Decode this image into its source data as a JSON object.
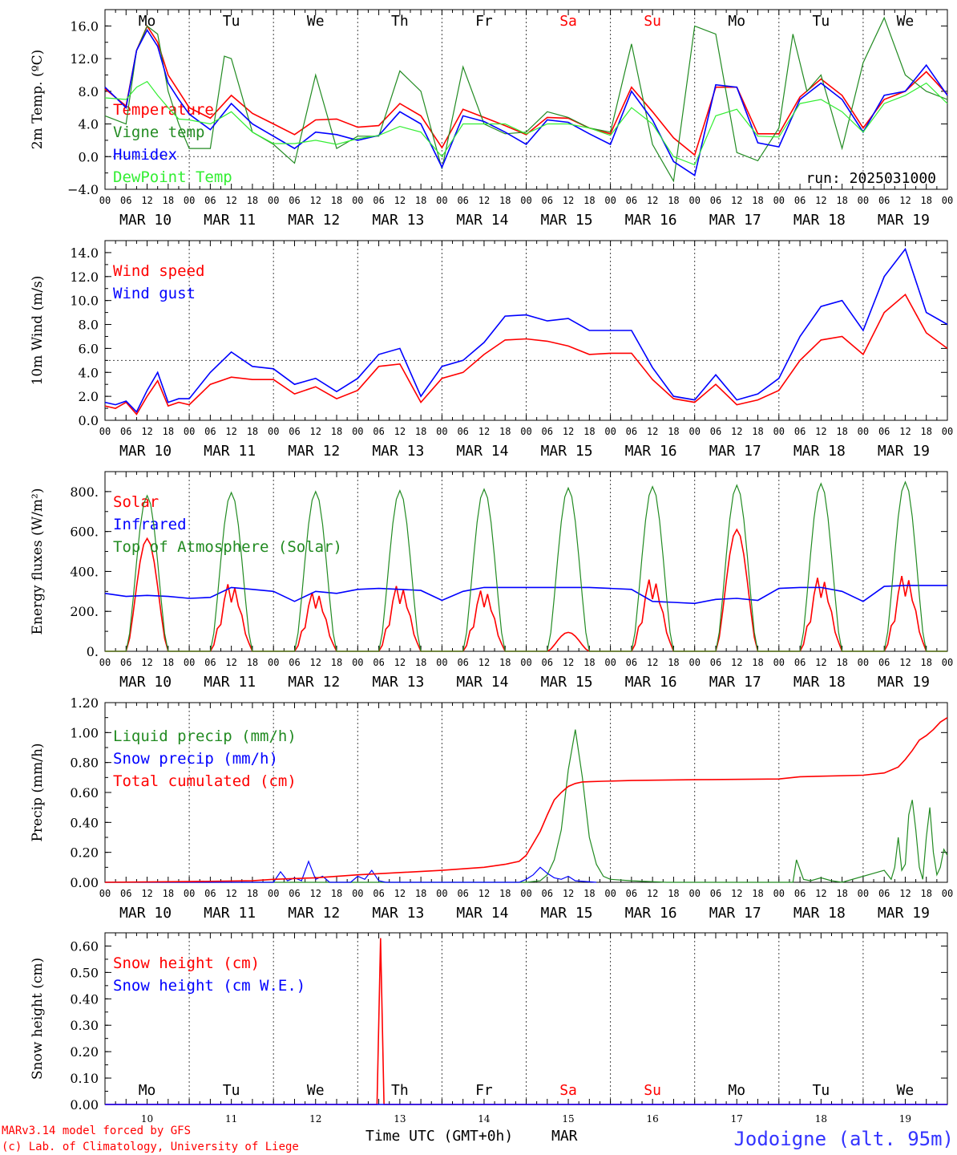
{
  "colors": {
    "red": "#ff0000",
    "blue": "#0000ff",
    "green": "#228b22",
    "lightgreen": "#33ee33",
    "gridgray": "#555555",
    "footer_blue": "#3333ff"
  },
  "day_names": [
    "Mo",
    "Tu",
    "We",
    "Th",
    "Fr",
    "Sa",
    "Su",
    "Mo",
    "Tu",
    "We"
  ],
  "weekend_day_indices": [
    5,
    6
  ],
  "day_dates": [
    "MAR 10",
    "MAR 11",
    "MAR 12",
    "MAR 13",
    "MAR 14",
    "MAR 15",
    "MAR 16",
    "MAR 17",
    "MAR 18",
    "MAR 19"
  ],
  "hour_ticks": [
    "00",
    "06",
    "12",
    "18"
  ],
  "day_numbers": [
    "10",
    "11",
    "12",
    "13",
    "14",
    "15",
    "16",
    "17",
    "18",
    "19"
  ],
  "footer": {
    "model": "MARv3.14 model forced by GFS",
    "copyright": "(c) Lab. of Climatology, University of Liege",
    "xlabel": "Time UTC (GMT+0h)",
    "month": "MAR",
    "station": "Jodoigne (alt. 95m)"
  },
  "chart_data": [
    {
      "type": "line",
      "ylabel": "2m Temp. (ºC)",
      "ylim": [
        -4,
        18
      ],
      "yticks": [
        "−4.0",
        "0.0",
        "4.0",
        "8.0",
        "12.0",
        "16.0"
      ],
      "yticks_values": [
        -4,
        0,
        4,
        8,
        12,
        16
      ],
      "reference_line": 0,
      "annotation": "run: 2025031000",
      "x_unit": "hours since MAR 10 00 UTC",
      "series": [
        {
          "name": "Temperature",
          "color": "red",
          "x": [
            0,
            6,
            9,
            12,
            15,
            18,
            21,
            24,
            30,
            36,
            42,
            48,
            54,
            60,
            66,
            72,
            78,
            84,
            90,
            96,
            102,
            108,
            114,
            120,
            126,
            132,
            138,
            144,
            150,
            156,
            162,
            168,
            174,
            180,
            186,
            192,
            198,
            204,
            210,
            216,
            222,
            228,
            234,
            240
          ],
          "y": [
            8.3,
            6.2,
            13,
            16,
            14,
            10,
            8,
            6,
            4.7,
            7.5,
            5.3,
            4,
            2.7,
            4.5,
            4.6,
            3.6,
            3.8,
            6.5,
            5,
            1.1,
            5.8,
            4.8,
            3.8,
            2.7,
            4.8,
            4.7,
            3.5,
            2.8,
            8.5,
            5.5,
            2.3,
            0.2,
            8.5,
            8.5,
            2.8,
            2.8,
            7.3,
            9.5,
            7.5,
            3.5,
            7,
            8,
            10.4,
            7.6
          ]
        },
        {
          "name": "Vigne temp",
          "color": "green",
          "x": [
            0,
            6,
            9,
            12,
            15,
            18,
            21,
            24,
            30,
            34,
            36,
            42,
            48,
            54,
            60,
            66,
            72,
            78,
            84,
            90,
            96,
            102,
            108,
            114,
            120,
            126,
            132,
            138,
            144,
            150,
            156,
            162,
            168,
            174,
            180,
            186,
            192,
            196,
            200,
            204,
            210,
            216,
            222,
            228,
            234,
            240
          ],
          "y": [
            5,
            4,
            13,
            16,
            15,
            8,
            4,
            1,
            1,
            12.3,
            12,
            3,
            1.5,
            -0.8,
            10,
            1,
            2.5,
            2.5,
            10.5,
            8,
            -1.5,
            11,
            4,
            2.8,
            3,
            5.5,
            4.8,
            3.5,
            3,
            13.8,
            1.5,
            -3,
            16,
            15,
            0.5,
            -0.5,
            3.5,
            15,
            8,
            10,
            1,
            11.5,
            17,
            10,
            8,
            7
          ]
        },
        {
          "name": "Humidex",
          "color": "blue",
          "x": [
            0,
            6,
            9,
            12,
            15,
            18,
            21,
            24,
            30,
            36,
            42,
            48,
            54,
            60,
            66,
            72,
            78,
            84,
            90,
            96,
            102,
            108,
            114,
            120,
            126,
            132,
            138,
            144,
            150,
            156,
            162,
            168,
            174,
            180,
            186,
            192,
            198,
            204,
            210,
            216,
            222,
            228,
            234,
            240
          ],
          "y": [
            8.5,
            6,
            13,
            15.5,
            13.5,
            9,
            7,
            5.2,
            3.3,
            6.5,
            4,
            2.5,
            1,
            3,
            2.7,
            2,
            2.6,
            5.5,
            4,
            -1.3,
            5,
            4.3,
            3,
            1.5,
            4.5,
            4.2,
            2.8,
            1.5,
            8,
            4.5,
            -0.6,
            -2.3,
            8.8,
            8.5,
            1.7,
            1.2,
            7,
            9,
            7,
            3,
            7.5,
            8,
            11.2,
            7.5
          ]
        },
        {
          "name": "DewPoint Temp",
          "color": "lightgreen",
          "x": [
            0,
            6,
            9,
            12,
            15,
            18,
            21,
            24,
            30,
            36,
            42,
            48,
            54,
            60,
            66,
            72,
            78,
            84,
            90,
            96,
            102,
            108,
            114,
            120,
            126,
            132,
            138,
            144,
            150,
            156,
            162,
            168,
            174,
            180,
            186,
            192,
            198,
            204,
            210,
            216,
            222,
            228,
            234,
            240
          ],
          "y": [
            7.2,
            7,
            8.5,
            9.2,
            7.5,
            6,
            4.6,
            4.5,
            4,
            5.5,
            3,
            1.6,
            1.6,
            2,
            1.5,
            2.2,
            2.6,
            3.7,
            3,
            0,
            4,
            4,
            4,
            2.8,
            4,
            4,
            3.5,
            2.6,
            6,
            4,
            0,
            -1,
            5,
            5.8,
            2.5,
            2.4,
            6.5,
            7,
            5.5,
            3,
            6.5,
            7.5,
            9,
            6.5
          ]
        }
      ]
    },
    {
      "type": "line",
      "ylabel": "10m Wind (m/s)",
      "ylim": [
        0,
        15
      ],
      "yticks": [
        "0.0",
        "2.0",
        "4.0",
        "6.0",
        "8.0",
        "10.0",
        "12.0",
        "14.0"
      ],
      "yticks_values": [
        0,
        2,
        4,
        6,
        8,
        10,
        12,
        14
      ],
      "reference_line": 5,
      "series": [
        {
          "name": "Wind speed",
          "color": "red",
          "x": [
            0,
            3,
            6,
            9,
            12,
            15,
            18,
            21,
            24,
            30,
            36,
            42,
            48,
            54,
            60,
            66,
            72,
            78,
            84,
            90,
            96,
            102,
            108,
            114,
            120,
            126,
            132,
            138,
            144,
            150,
            156,
            162,
            168,
            174,
            180,
            186,
            192,
            198,
            204,
            210,
            216,
            222,
            228,
            234,
            240
          ],
          "y": [
            1.2,
            1,
            1.5,
            0.5,
            2,
            3.3,
            1.2,
            1.5,
            1.3,
            3,
            3.6,
            3.4,
            3.4,
            2.2,
            2.8,
            1.8,
            2.5,
            4.5,
            4.7,
            1.5,
            3.5,
            4,
            5.5,
            6.7,
            6.8,
            6.6,
            6.2,
            5.5,
            5.6,
            5.6,
            3.4,
            1.8,
            1.5,
            3,
            1.3,
            1.7,
            2.5,
            5,
            6.7,
            7,
            5.5,
            9,
            10.5,
            7.3,
            6
          ]
        },
        {
          "name": "Wind gust",
          "color": "blue",
          "x": [
            0,
            3,
            6,
            9,
            12,
            15,
            18,
            21,
            24,
            30,
            36,
            42,
            48,
            54,
            60,
            66,
            72,
            78,
            84,
            90,
            96,
            102,
            108,
            114,
            120,
            126,
            132,
            138,
            144,
            150,
            156,
            162,
            168,
            174,
            180,
            186,
            192,
            198,
            204,
            210,
            216,
            222,
            228,
            234,
            240
          ],
          "y": [
            1.5,
            1.3,
            1.6,
            0.7,
            2.5,
            4,
            1.5,
            1.8,
            1.8,
            4,
            5.7,
            4.5,
            4.3,
            3,
            3.5,
            2.4,
            3.5,
            5.5,
            6,
            2,
            4.5,
            5,
            6.5,
            8.7,
            8.8,
            8.3,
            8.5,
            7.5,
            7.5,
            7.5,
            4.4,
            2,
            1.7,
            3.8,
            1.7,
            2.2,
            3.5,
            7,
            9.5,
            10,
            7.5,
            12,
            14.3,
            9,
            8
          ]
        }
      ]
    },
    {
      "type": "line",
      "ylabel": "Energy fluxes (W/m²)",
      "ylim": [
        0,
        900
      ],
      "yticks": [
        "0.",
        "200.",
        "400.",
        "600.",
        "800."
      ],
      "yticks_values": [
        0,
        200,
        400,
        600,
        800
      ],
      "series": [
        {
          "name": "Solar",
          "color": "red",
          "peaks": [
            565,
            365,
            320,
            355,
            330,
            95,
            390,
            610,
            400,
            410
          ]
        },
        {
          "name": "Infrared",
          "color": "blue",
          "x": [
            0,
            6,
            12,
            18,
            24,
            30,
            36,
            42,
            48,
            54,
            60,
            66,
            72,
            78,
            84,
            90,
            96,
            102,
            108,
            114,
            120,
            126,
            132,
            138,
            144,
            150,
            156,
            162,
            168,
            174,
            180,
            186,
            192,
            198,
            204,
            210,
            216,
            222,
            228,
            234,
            240
          ],
          "y": [
            290,
            275,
            280,
            275,
            265,
            270,
            320,
            310,
            300,
            250,
            300,
            290,
            310,
            315,
            310,
            305,
            255,
            300,
            320,
            320,
            320,
            320,
            320,
            320,
            315,
            310,
            250,
            245,
            240,
            260,
            265,
            255,
            315,
            320,
            320,
            300,
            250,
            325,
            330,
            330,
            330
          ]
        },
        {
          "name": "Top of Atmosphere (Solar)",
          "color": "green",
          "peaks": [
            780,
            795,
            800,
            805,
            812,
            818,
            825,
            832,
            840,
            848
          ]
        }
      ]
    },
    {
      "type": "line",
      "ylabel": "Precip (mm/h)",
      "ylim": [
        0,
        1.2
      ],
      "yticks": [
        "0.00",
        "0.20",
        "0.40",
        "0.60",
        "0.80",
        "1.00",
        "1.20"
      ],
      "yticks_values": [
        0,
        0.2,
        0.4,
        0.6,
        0.8,
        1.0,
        1.2
      ],
      "series": [
        {
          "name": "Liquid precip (mm/h)",
          "color": "green",
          "x": [
            0,
            48,
            120,
            124,
            126,
            128,
            130,
            132,
            134,
            136,
            138,
            140,
            142,
            144,
            150,
            160,
            196,
            197,
            199,
            201,
            204,
            207,
            210,
            222,
            224,
            225,
            226,
            227,
            228,
            229,
            230,
            231,
            232,
            233,
            234,
            235,
            236,
            237,
            238,
            239,
            240
          ],
          "y": [
            0,
            0,
            0,
            0.01,
            0.05,
            0.15,
            0.35,
            0.75,
            1.02,
            0.7,
            0.3,
            0.12,
            0.04,
            0.02,
            0.01,
            0,
            0,
            0.15,
            0.02,
            0.01,
            0.03,
            0.01,
            0,
            0.08,
            0.02,
            0.1,
            0.3,
            0.08,
            0.12,
            0.45,
            0.55,
            0.35,
            0.1,
            0.02,
            0.3,
            0.5,
            0.2,
            0.05,
            0.1,
            0.22,
            0.18
          ]
        },
        {
          "name": "Snow precip (mm/h)",
          "color": "blue",
          "x": [
            0,
            48,
            50,
            52,
            54,
            56,
            58,
            60,
            62,
            64,
            70,
            72,
            74,
            76,
            78,
            80,
            118,
            120,
            122,
            124,
            126,
            128,
            130,
            132,
            134,
            140
          ],
          "y": [
            0,
            0,
            0.07,
            0.01,
            0.03,
            0.01,
            0.14,
            0.02,
            0.04,
            0,
            0,
            0.04,
            0.02,
            0.08,
            0.01,
            0,
            0,
            0.02,
            0.05,
            0.1,
            0.06,
            0.03,
            0.02,
            0.04,
            0.01,
            0
          ]
        },
        {
          "name": "Total cumulated (cm)",
          "color": "red",
          "x": [
            0,
            24,
            42,
            48,
            60,
            72,
            96,
            108,
            114,
            118,
            120,
            122,
            124,
            126,
            128,
            130,
            132,
            134,
            136,
            138,
            142,
            150,
            168,
            192,
            198,
            216,
            222,
            226,
            228,
            230,
            232,
            234,
            236,
            238,
            240
          ],
          "y": [
            0,
            0.005,
            0.01,
            0.02,
            0.03,
            0.05,
            0.08,
            0.1,
            0.12,
            0.14,
            0.18,
            0.26,
            0.34,
            0.45,
            0.55,
            0.6,
            0.64,
            0.66,
            0.67,
            0.672,
            0.675,
            0.68,
            0.685,
            0.69,
            0.705,
            0.715,
            0.73,
            0.77,
            0.82,
            0.88,
            0.95,
            0.98,
            1.02,
            1.07,
            1.1
          ]
        }
      ]
    },
    {
      "type": "line",
      "ylabel": "Snow height (cm)",
      "ylim": [
        0,
        0.65
      ],
      "yticks": [
        "0.00",
        "0.10",
        "0.20",
        "0.30",
        "0.40",
        "0.50",
        "0.60"
      ],
      "yticks_values": [
        0,
        0.1,
        0.2,
        0.3,
        0.4,
        0.5,
        0.6
      ],
      "series": [
        {
          "name": "Snow height (cm)",
          "color": "red",
          "x": [
            0,
            77.5,
            78.5,
            79.5,
            240
          ],
          "y": [
            0,
            0,
            0.63,
            0,
            0
          ]
        },
        {
          "name": "Snow height (cm W.E.)",
          "color": "blue",
          "x": [
            0,
            240
          ],
          "y": [
            0,
            0
          ]
        }
      ]
    }
  ]
}
